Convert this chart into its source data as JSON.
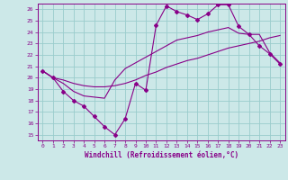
{
  "title": "",
  "xlabel": "Windchill (Refroidissement éolien,°C)",
  "bg_color": "#cce8e8",
  "grid_color": "#99cccc",
  "line_color": "#880088",
  "xlim": [
    -0.5,
    23.5
  ],
  "ylim": [
    14.5,
    26.5
  ],
  "xticks": [
    0,
    1,
    2,
    3,
    4,
    5,
    6,
    7,
    8,
    9,
    10,
    11,
    12,
    13,
    14,
    15,
    16,
    17,
    18,
    19,
    20,
    21,
    22,
    23
  ],
  "yticks": [
    15,
    16,
    17,
    18,
    19,
    20,
    21,
    22,
    23,
    24,
    25,
    26
  ],
  "line1_x": [
    0,
    1,
    2,
    3,
    4,
    5,
    6,
    7,
    8,
    9,
    10,
    11,
    12,
    13,
    14,
    15,
    16,
    17,
    18,
    19,
    20,
    21,
    22,
    23
  ],
  "line1_y": [
    20.6,
    20.0,
    18.8,
    18.0,
    17.5,
    16.6,
    15.7,
    15.0,
    16.4,
    19.5,
    18.9,
    24.6,
    26.3,
    25.8,
    25.5,
    25.1,
    25.6,
    26.4,
    26.4,
    24.5,
    23.8,
    22.8,
    22.1,
    21.2
  ],
  "line2_x": [
    0,
    1,
    2,
    3,
    4,
    5,
    6,
    7,
    8,
    9,
    10,
    11,
    12,
    13,
    14,
    15,
    16,
    17,
    18,
    19,
    20,
    21,
    22,
    23
  ],
  "line2_y": [
    20.6,
    20.0,
    19.8,
    19.5,
    19.3,
    19.2,
    19.2,
    19.3,
    19.5,
    19.8,
    20.2,
    20.5,
    20.9,
    21.2,
    21.5,
    21.7,
    22.0,
    22.3,
    22.6,
    22.8,
    23.0,
    23.2,
    23.5,
    23.7
  ],
  "line3_x": [
    0,
    1,
    2,
    3,
    4,
    5,
    6,
    7,
    8,
    9,
    10,
    11,
    12,
    13,
    14,
    15,
    16,
    17,
    18,
    19,
    20,
    21,
    22,
    23
  ],
  "line3_y": [
    20.6,
    20.0,
    19.5,
    18.8,
    18.4,
    18.3,
    18.2,
    19.8,
    20.8,
    21.3,
    21.8,
    22.3,
    22.8,
    23.3,
    23.5,
    23.7,
    24.0,
    24.2,
    24.4,
    23.9,
    23.8,
    23.8,
    22.2,
    21.3
  ],
  "marker": "D",
  "markersize": 2.0,
  "linewidth": 0.8,
  "tick_fontsize": 4.5,
  "xlabel_fontsize": 5.5
}
